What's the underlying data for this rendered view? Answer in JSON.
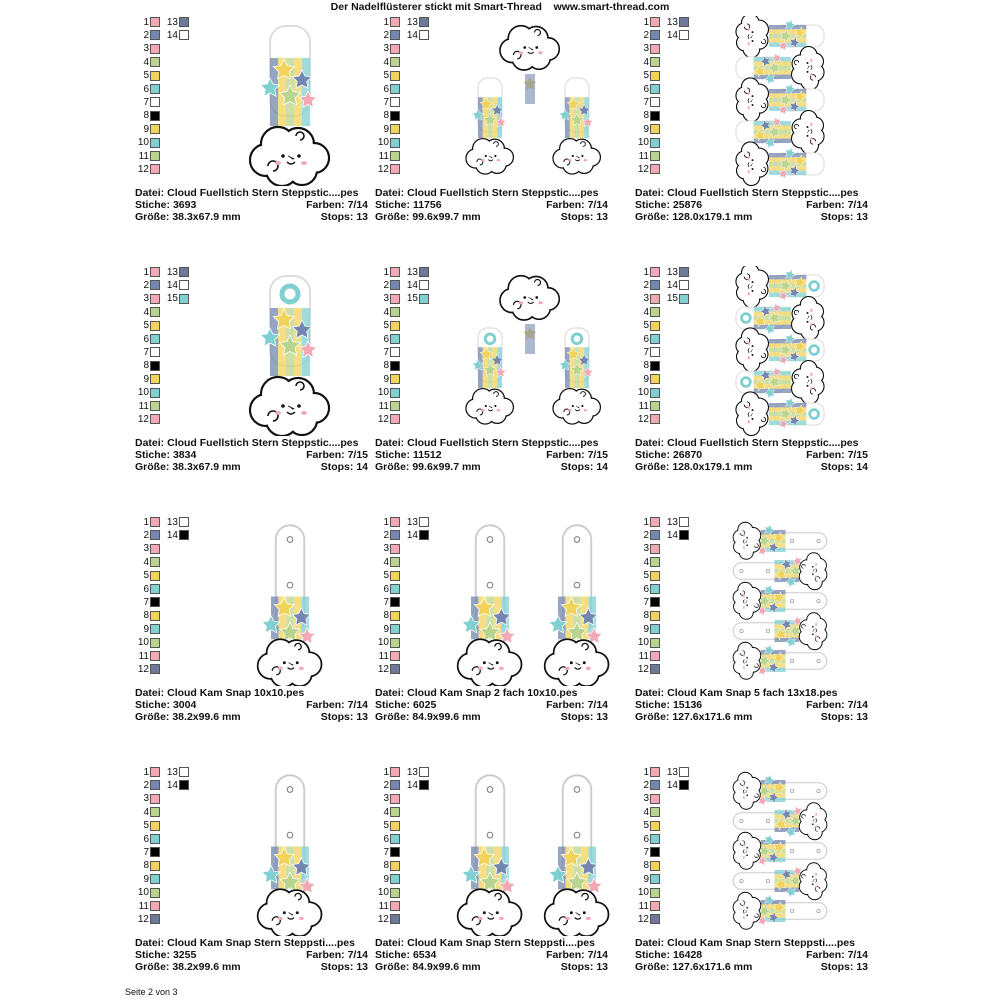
{
  "header": {
    "title": "Der Nadelflüsterer stickt mit Smart-Thread",
    "url": "www.smart-thread.com"
  },
  "footer": {
    "page": "Seite 2 von 3"
  },
  "colors": {
    "pink": "#f2a9b3",
    "blue": "#7487b0",
    "green": "#b8d48e",
    "yellow": "#f1d35a",
    "teal": "#80cfd1",
    "white": "#ffffff",
    "black": "#000000",
    "slate": "#6e7899"
  },
  "labels": {
    "file": "Datei:",
    "stitches": "Stiche:",
    "colors": "Farben:",
    "size": "Größe:",
    "stops": "Stops:"
  },
  "palettes": {
    "a": [
      "pink",
      "blue",
      "pink",
      "green",
      "yellow",
      "teal",
      "white",
      "black",
      "yellow",
      "teal",
      "green",
      "pink",
      "slate",
      "white"
    ],
    "b": [
      "pink",
      "blue",
      "pink",
      "green",
      "yellow",
      "teal",
      "white",
      "black",
      "yellow",
      "teal",
      "green",
      "pink",
      "slate",
      "white",
      "teal"
    ],
    "c": [
      "pink",
      "blue",
      "pink",
      "green",
      "yellow",
      "teal",
      "black",
      "yellow",
      "teal",
      "green",
      "pink",
      "slate",
      "white",
      "black"
    ]
  },
  "designs": [
    {
      "file": "Cloud Fuellstich Stern Steppstic....pes",
      "stitches": "3693",
      "colors": "7/14",
      "size": "38.3x67.9 mm",
      "stops": "13",
      "palette": "a",
      "preview": {
        "style": "fob",
        "layout": "single"
      }
    },
    {
      "file": "Cloud Fuellstich Stern Steppstic....pes",
      "stitches": "11756",
      "colors": "7/14",
      "size": "99.6x99.7 mm",
      "stops": "13",
      "palette": "a",
      "preview": {
        "style": "fob",
        "layout": "double"
      }
    },
    {
      "file": "Cloud Fuellstich Stern Steppstic....pes",
      "stitches": "25876",
      "colors": "7/14",
      "size": "128.0x179.1 mm",
      "stops": "13",
      "palette": "a",
      "preview": {
        "style": "fob",
        "layout": "five"
      }
    },
    {
      "file": "Cloud Fuellstich Stern Steppstic....pes",
      "stitches": "3834",
      "colors": "7/15",
      "size": "38.3x67.9 mm",
      "stops": "14",
      "palette": "b",
      "preview": {
        "style": "ring",
        "layout": "single"
      }
    },
    {
      "file": "Cloud Fuellstich Stern Steppstic....pes",
      "stitches": "11512",
      "colors": "7/15",
      "size": "99.6x99.7 mm",
      "stops": "14",
      "palette": "b",
      "preview": {
        "style": "ring",
        "layout": "double"
      }
    },
    {
      "file": "Cloud Fuellstich Stern Steppstic....pes",
      "stitches": "26870",
      "colors": "7/15",
      "size": "128.0x179.1 mm",
      "stops": "14",
      "palette": "b",
      "preview": {
        "style": "ring",
        "layout": "five"
      }
    },
    {
      "file": "Cloud Kam Snap 10x10.pes",
      "stitches": "3004",
      "colors": "7/14",
      "size": "38.2x99.6 mm",
      "stops": "13",
      "palette": "c",
      "preview": {
        "style": "snap",
        "layout": "single"
      }
    },
    {
      "file": "Cloud Kam Snap 2 fach 10x10.pes",
      "stitches": "6025",
      "colors": "7/14",
      "size": "84.9x99.6 mm",
      "stops": "13",
      "palette": "c",
      "preview": {
        "style": "snap",
        "layout": "double"
      }
    },
    {
      "file": "Cloud Kam Snap 5 fach 13x18.pes",
      "stitches": "15136",
      "colors": "7/14",
      "size": "127.6x171.6 mm",
      "stops": "13",
      "palette": "c",
      "preview": {
        "style": "snap",
        "layout": "five"
      }
    },
    {
      "file": "Cloud Kam Snap Stern Steppsti....pes",
      "stitches": "3255",
      "colors": "7/14",
      "size": "38.2x99.6 mm",
      "stops": "13",
      "palette": "c",
      "preview": {
        "style": "snap",
        "layout": "single"
      }
    },
    {
      "file": "Cloud Kam Snap Stern Steppsti....pes",
      "stitches": "6534",
      "colors": "7/14",
      "size": "84.9x99.6 mm",
      "stops": "13",
      "palette": "c",
      "preview": {
        "style": "snap",
        "layout": "double"
      }
    },
    {
      "file": "Cloud Kam Snap Stern Steppsti....pes",
      "stitches": "16428",
      "colors": "7/14",
      "size": "127.6x171.6 mm",
      "stops": "13",
      "palette": "c",
      "preview": {
        "style": "snap",
        "layout": "five"
      }
    }
  ]
}
